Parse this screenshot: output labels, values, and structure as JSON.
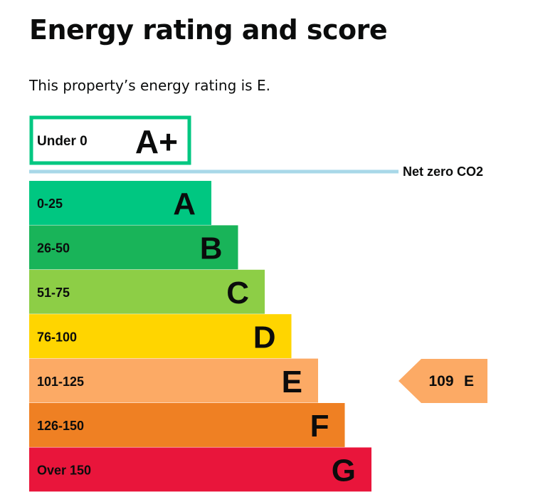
{
  "page": {
    "title": "Energy rating and score",
    "subtitle": "This property’s energy rating is E."
  },
  "chart_data": {
    "type": "bar",
    "top_band": {
      "range": "Under 0",
      "letter": "A+",
      "color": "#00c781"
    },
    "net_zero_label": "Net zero CO2",
    "net_zero_line_color": "#a8d8e8",
    "bands": [
      {
        "range": "0-25",
        "letter": "A",
        "color": "#00c781"
      },
      {
        "range": "26-50",
        "letter": "B",
        "color": "#19b459"
      },
      {
        "range": "51-75",
        "letter": "C",
        "color": "#8dce46"
      },
      {
        "range": "76-100",
        "letter": "D",
        "color": "#ffd500"
      },
      {
        "range": "101-125",
        "letter": "E",
        "color": "#fcaa65"
      },
      {
        "range": "126-150",
        "letter": "F",
        "color": "#ef8023"
      },
      {
        "range": "Over 150",
        "letter": "G",
        "color": "#e9153b"
      }
    ],
    "current": {
      "score": "109",
      "letter": "E",
      "color": "#fcaa65"
    }
  }
}
